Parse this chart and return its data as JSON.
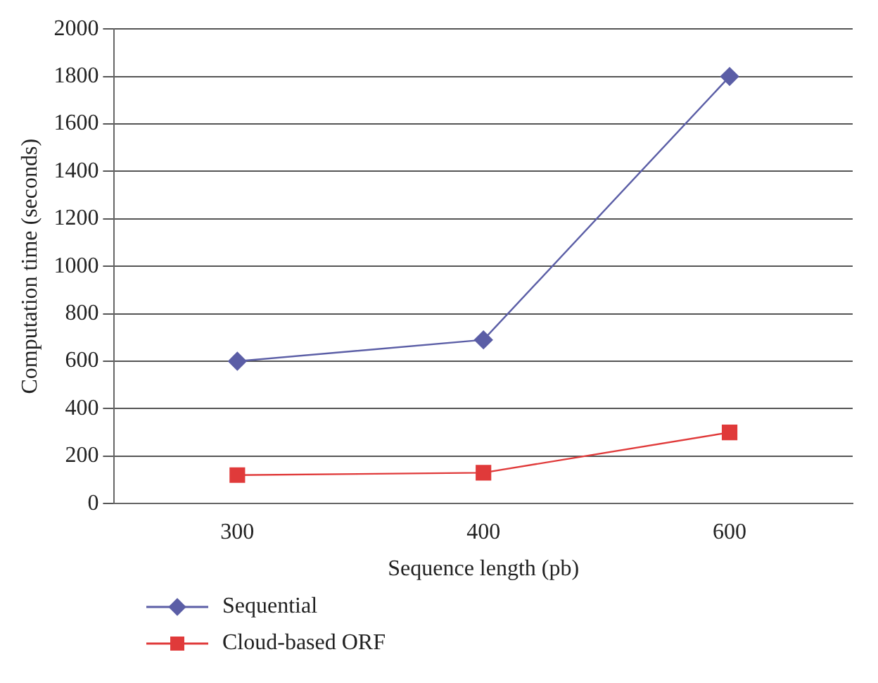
{
  "chart_data": {
    "type": "line",
    "xlabel": "Sequence length (pb)",
    "ylabel": "Computation time (seconds)",
    "categories": [
      "300",
      "400",
      "600"
    ],
    "series": [
      {
        "name": "Sequential",
        "color": "#5b5ea6",
        "values": [
          600,
          690,
          1800
        ],
        "marker": "diamond"
      },
      {
        "name": "Cloud-based ORF",
        "color": "#e03a3a",
        "values": [
          120,
          130,
          300
        ],
        "marker": "square"
      }
    ],
    "ylim": [
      0,
      2000
    ],
    "yticks": [
      0,
      200,
      400,
      600,
      800,
      1000,
      1200,
      1400,
      1600,
      1800,
      2000
    ],
    "grid": "y",
    "legend": "bottom"
  }
}
